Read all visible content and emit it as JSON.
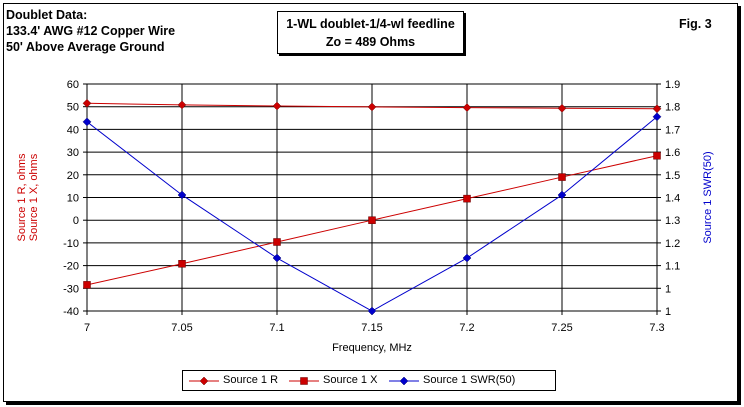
{
  "info": {
    "line1": "Doublet Data:",
    "line2": "133.4' AWG #12 Copper Wire",
    "line3": "50' Above Average Ground"
  },
  "title": {
    "line1": "1-WL doublet-1/4-wl feedline",
    "line2": "Zo = 489 Ohms"
  },
  "fig_label": "Fig. 3",
  "colors": {
    "red": "#cc0000",
    "blue": "#0000cc"
  },
  "chart_data": {
    "type": "line",
    "title": "1-WL doublet-1/4-wl feedline",
    "xlabel": "Frequency, MHz",
    "ylabel_left": [
      "Source 1 R, ohms",
      "Source 1 X, ohms"
    ],
    "ylabel_right": "Source 1 SWR(50)",
    "x": [
      7,
      7.05,
      7.1,
      7.15,
      7.2,
      7.25,
      7.3
    ],
    "x_ticks": [
      "7",
      "7.05",
      "7.1",
      "7.15",
      "7.2",
      "7.25",
      "7.3"
    ],
    "xlim": [
      7,
      7.3
    ],
    "ylim_left": [
      -40,
      60
    ],
    "y_ticks_left": [
      "60",
      "50",
      "40",
      "30",
      "20",
      "10",
      "0",
      "-10",
      "-20",
      "-30",
      "-40"
    ],
    "ylim_right": [
      1,
      1.9
    ],
    "y_ticks_right": [
      "1.9",
      "1.8",
      "1.7",
      "1.6",
      "1.5",
      "1.4",
      "1.3",
      "1.2",
      "1.1",
      "1",
      "1"
    ],
    "grid": true,
    "legend_position": "bottom",
    "series": [
      {
        "name": "Source 1 R",
        "axis": "left",
        "color": "#cc0000",
        "marker": "diamond",
        "values": [
          51.5,
          50.8,
          50.3,
          49.9,
          49.6,
          49.3,
          49.1
        ]
      },
      {
        "name": "Source 1 X",
        "axis": "left",
        "color": "#cc0000",
        "marker": "square",
        "values": [
          -28.5,
          -19.2,
          -9.6,
          0,
          9.5,
          19.0,
          28.4
        ]
      },
      {
        "name": "Source 1 SWR(50)",
        "axis": "right",
        "color": "#0000cc",
        "marker": "diamond",
        "values": [
          1.75,
          1.46,
          1.21,
          1.0,
          1.21,
          1.46,
          1.77
        ]
      }
    ]
  }
}
